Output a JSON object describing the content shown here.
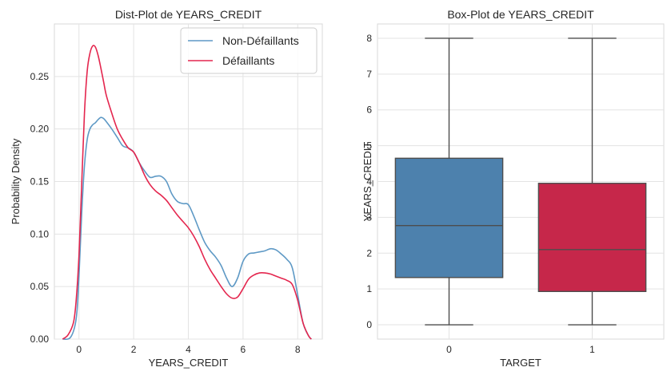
{
  "chart_data": [
    {
      "type": "line",
      "title": "Dist-Plot de YEARS_CREDIT",
      "xlabel": "YEARS_CREDIT",
      "ylabel": "Probability Density",
      "xlim": [
        -0.9,
        8.9
      ],
      "ylim": [
        0,
        0.3
      ],
      "xticks": [
        0,
        2,
        4,
        6,
        8
      ],
      "yticks": [
        0.0,
        0.05,
        0.1,
        0.15,
        0.2,
        0.25
      ],
      "ytick_labels": [
        "0.00",
        "0.05",
        "0.10",
        "0.15",
        "0.20",
        "0.25"
      ],
      "grid": true,
      "legend_position": "top-right",
      "series": [
        {
          "name": "Non-Défaillants",
          "color": "#5e99c5",
          "x": [
            -0.6,
            -0.3,
            -0.1,
            0.0,
            0.1,
            0.2,
            0.3,
            0.4,
            0.5,
            0.6,
            0.7,
            0.8,
            0.9,
            1.0,
            1.2,
            1.4,
            1.6,
            1.8,
            2.0,
            2.2,
            2.4,
            2.6,
            2.8,
            3.0,
            3.2,
            3.4,
            3.6,
            3.8,
            4.0,
            4.2,
            4.4,
            4.6,
            4.8,
            5.0,
            5.2,
            5.4,
            5.6,
            5.8,
            6.0,
            6.2,
            6.4,
            6.6,
            6.8,
            7.0,
            7.2,
            7.4,
            7.6,
            7.8,
            8.0,
            8.2,
            8.4,
            8.5
          ],
          "values": [
            0.0,
            0.002,
            0.02,
            0.06,
            0.12,
            0.165,
            0.19,
            0.2,
            0.204,
            0.206,
            0.209,
            0.211,
            0.21,
            0.207,
            0.2,
            0.192,
            0.184,
            0.182,
            0.178,
            0.168,
            0.16,
            0.154,
            0.155,
            0.155,
            0.15,
            0.138,
            0.131,
            0.129,
            0.128,
            0.117,
            0.104,
            0.092,
            0.084,
            0.078,
            0.07,
            0.058,
            0.05,
            0.058,
            0.074,
            0.081,
            0.082,
            0.083,
            0.084,
            0.086,
            0.085,
            0.081,
            0.076,
            0.068,
            0.042,
            0.015,
            0.003,
            0.0
          ]
        },
        {
          "name": "Défaillants",
          "color": "#e4264e",
          "x": [
            -0.6,
            -0.4,
            -0.2,
            -0.1,
            0.0,
            0.1,
            0.2,
            0.3,
            0.4,
            0.5,
            0.6,
            0.7,
            0.8,
            0.9,
            1.0,
            1.2,
            1.4,
            1.6,
            1.8,
            2.0,
            2.2,
            2.4,
            2.6,
            2.8,
            3.0,
            3.2,
            3.4,
            3.6,
            3.8,
            4.0,
            4.2,
            4.4,
            4.6,
            4.8,
            5.0,
            5.2,
            5.4,
            5.6,
            5.8,
            6.0,
            6.2,
            6.4,
            6.6,
            6.8,
            7.0,
            7.2,
            7.4,
            7.6,
            7.8,
            8.0,
            8.2,
            8.4,
            8.5
          ],
          "values": [
            0.0,
            0.004,
            0.016,
            0.038,
            0.08,
            0.148,
            0.215,
            0.255,
            0.272,
            0.279,
            0.278,
            0.27,
            0.258,
            0.245,
            0.232,
            0.215,
            0.2,
            0.19,
            0.182,
            0.178,
            0.168,
            0.156,
            0.147,
            0.141,
            0.137,
            0.132,
            0.125,
            0.118,
            0.112,
            0.106,
            0.098,
            0.088,
            0.076,
            0.066,
            0.058,
            0.05,
            0.043,
            0.039,
            0.04,
            0.048,
            0.057,
            0.061,
            0.063,
            0.063,
            0.062,
            0.06,
            0.058,
            0.056,
            0.052,
            0.037,
            0.015,
            0.003,
            0.0
          ]
        }
      ]
    },
    {
      "type": "box",
      "title": "Box-Plot de YEARS_CREDIT",
      "xlabel": "TARGET",
      "ylabel": "YEARS_CREDIT",
      "ylim": [
        -0.4,
        8.4
      ],
      "yticks": [
        0,
        1,
        2,
        3,
        4,
        5,
        6,
        7,
        8
      ],
      "grid": true,
      "categories": [
        "0",
        "1"
      ],
      "boxes": [
        {
          "category": "0",
          "color": "#4d81ad",
          "whisker_low": 0,
          "q1": 1.32,
          "median": 2.77,
          "q3": 4.65,
          "whisker_high": 8
        },
        {
          "category": "1",
          "color": "#c6274a",
          "whisker_low": 0,
          "q1": 0.93,
          "median": 2.1,
          "q3": 3.95,
          "whisker_high": 8
        }
      ]
    }
  ]
}
